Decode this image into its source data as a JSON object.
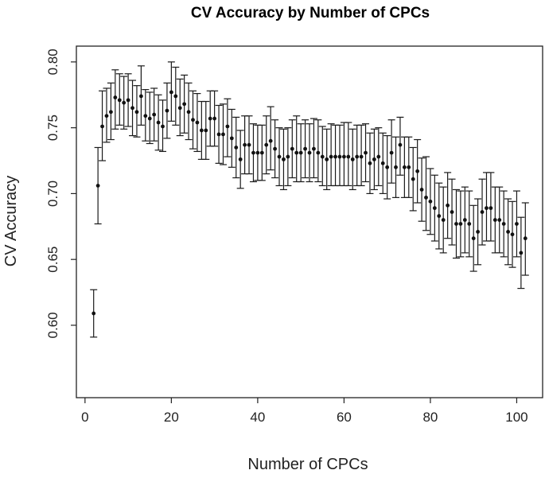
{
  "chart_data": {
    "type": "scatter",
    "title": "CV Accuracy by Number of CPCs",
    "xlabel": "Number of CPCs",
    "ylabel": "CV Accuracy",
    "xlim": [
      -2,
      106
    ],
    "ylim": [
      0.545,
      0.812
    ],
    "xticks": [
      0,
      20,
      40,
      60,
      80,
      100
    ],
    "yticks": [
      0.6,
      0.65,
      0.7,
      0.75,
      0.8
    ],
    "xtick_labels": [
      "0",
      "20",
      "40",
      "60",
      "80",
      "100"
    ],
    "ytick_labels": [
      "0.60",
      "0.65",
      "0.70",
      "0.75",
      "0.80"
    ],
    "grid": false,
    "legend": "none",
    "series": [
      {
        "x": [
          2,
          3,
          4,
          5,
          6,
          7,
          8,
          9,
          10,
          11,
          12,
          13,
          14,
          15,
          16,
          17,
          18,
          19,
          20,
          21,
          22,
          23,
          24,
          25,
          26,
          27,
          28,
          29,
          30,
          31,
          32,
          33,
          34,
          35,
          36,
          37,
          38,
          39,
          40,
          41,
          42,
          43,
          44,
          45,
          46,
          47,
          48,
          49,
          50,
          51,
          52,
          53,
          54,
          55,
          56,
          57,
          58,
          59,
          60,
          61,
          62,
          63,
          64,
          65,
          66,
          67,
          68,
          69,
          70,
          71,
          72,
          73,
          74,
          75,
          76,
          77,
          78,
          79,
          80,
          81,
          82,
          83,
          84,
          85,
          86,
          87,
          88,
          89,
          90,
          91,
          92,
          93,
          94,
          95,
          96,
          97,
          98,
          99,
          100,
          101,
          102
        ],
        "y": [
          0.609,
          0.706,
          0.751,
          0.759,
          0.762,
          0.773,
          0.771,
          0.769,
          0.771,
          0.765,
          0.762,
          0.774,
          0.759,
          0.757,
          0.76,
          0.754,
          0.751,
          0.763,
          0.777,
          0.774,
          0.765,
          0.768,
          0.762,
          0.756,
          0.754,
          0.748,
          0.748,
          0.757,
          0.757,
          0.745,
          0.745,
          0.751,
          0.742,
          0.735,
          0.726,
          0.737,
          0.737,
          0.731,
          0.731,
          0.731,
          0.737,
          0.74,
          0.734,
          0.728,
          0.726,
          0.728,
          0.734,
          0.731,
          0.731,
          0.734,
          0.731,
          0.734,
          0.731,
          0.728,
          0.726,
          0.728,
          0.728,
          0.728,
          0.728,
          0.728,
          0.726,
          0.728,
          0.728,
          0.731,
          0.723,
          0.726,
          0.728,
          0.723,
          0.72,
          0.731,
          0.72,
          0.737,
          0.72,
          0.72,
          0.711,
          0.717,
          0.703,
          0.697,
          0.694,
          0.689,
          0.683,
          0.68,
          0.691,
          0.686,
          0.677,
          0.677,
          0.68,
          0.677,
          0.666,
          0.671,
          0.686,
          0.689,
          0.689,
          0.68,
          0.68,
          0.677,
          0.671,
          0.669,
          0.677,
          0.655,
          0.666
        ],
        "lower": [
          0.591,
          0.677,
          0.725,
          0.739,
          0.741,
          0.749,
          0.752,
          0.749,
          0.751,
          0.744,
          0.743,
          0.752,
          0.74,
          0.738,
          0.74,
          0.733,
          0.732,
          0.742,
          0.755,
          0.752,
          0.744,
          0.746,
          0.741,
          0.734,
          0.732,
          0.726,
          0.726,
          0.736,
          0.736,
          0.723,
          0.722,
          0.728,
          0.72,
          0.712,
          0.704,
          0.715,
          0.715,
          0.709,
          0.71,
          0.71,
          0.715,
          0.718,
          0.712,
          0.706,
          0.703,
          0.706,
          0.712,
          0.709,
          0.709,
          0.712,
          0.709,
          0.712,
          0.709,
          0.706,
          0.703,
          0.706,
          0.706,
          0.706,
          0.706,
          0.706,
          0.703,
          0.706,
          0.706,
          0.709,
          0.7,
          0.703,
          0.706,
          0.7,
          0.696,
          0.708,
          0.697,
          0.714,
          0.697,
          0.697,
          0.687,
          0.693,
          0.679,
          0.672,
          0.669,
          0.664,
          0.658,
          0.655,
          0.666,
          0.661,
          0.651,
          0.652,
          0.655,
          0.652,
          0.641,
          0.646,
          0.661,
          0.664,
          0.664,
          0.655,
          0.655,
          0.652,
          0.646,
          0.644,
          0.652,
          0.628,
          0.638
        ],
        "upper": [
          0.627,
          0.735,
          0.778,
          0.78,
          0.784,
          0.794,
          0.791,
          0.789,
          0.791,
          0.786,
          0.782,
          0.797,
          0.779,
          0.777,
          0.78,
          0.775,
          0.771,
          0.784,
          0.8,
          0.796,
          0.787,
          0.79,
          0.784,
          0.778,
          0.776,
          0.77,
          0.77,
          0.778,
          0.778,
          0.767,
          0.768,
          0.772,
          0.764,
          0.758,
          0.748,
          0.759,
          0.759,
          0.753,
          0.752,
          0.752,
          0.759,
          0.766,
          0.756,
          0.75,
          0.749,
          0.75,
          0.756,
          0.759,
          0.753,
          0.756,
          0.753,
          0.757,
          0.756,
          0.751,
          0.749,
          0.753,
          0.752,
          0.752,
          0.754,
          0.754,
          0.749,
          0.752,
          0.752,
          0.753,
          0.746,
          0.749,
          0.75,
          0.746,
          0.744,
          0.756,
          0.743,
          0.758,
          0.743,
          0.743,
          0.735,
          0.741,
          0.727,
          0.728,
          0.719,
          0.714,
          0.708,
          0.705,
          0.716,
          0.711,
          0.703,
          0.702,
          0.705,
          0.702,
          0.691,
          0.696,
          0.711,
          0.716,
          0.716,
          0.705,
          0.705,
          0.702,
          0.696,
          0.694,
          0.702,
          0.682,
          0.693
        ]
      }
    ]
  }
}
